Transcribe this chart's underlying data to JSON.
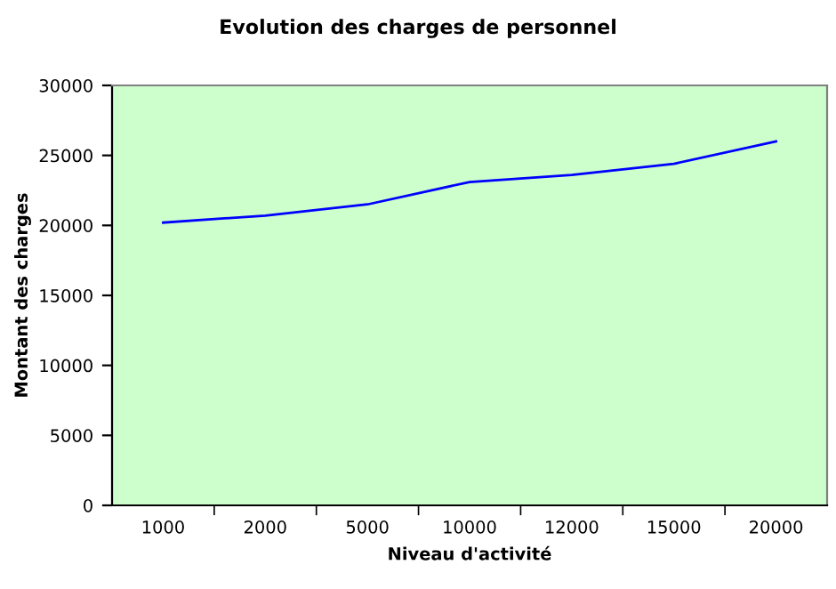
{
  "chart_data": {
    "type": "line",
    "title": "Evolution des charges de personnel",
    "xlabel": "Niveau d'activité",
    "ylabel": "Montant des charges",
    "categories": [
      "1000",
      "2000",
      "5000",
      "10000",
      "12000",
      "15000",
      "20000"
    ],
    "series": [
      {
        "color": "#0000ff",
        "values": [
          20200,
          20700,
          21500,
          23100,
          23600,
          24400,
          26000
        ]
      }
    ],
    "ylim": [
      0,
      30000
    ],
    "yticks": [
      0,
      5000,
      10000,
      15000,
      20000,
      25000,
      30000
    ],
    "grid": false,
    "marker": "none",
    "line_style": "solid"
  }
}
